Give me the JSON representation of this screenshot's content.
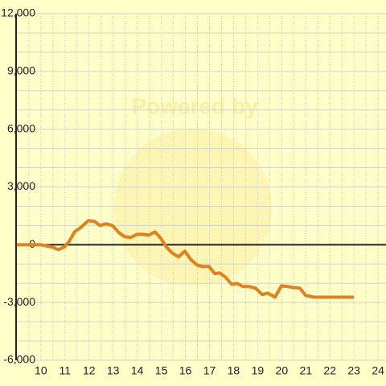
{
  "chart_data": {
    "type": "line",
    "watermark": "Powered by",
    "x": [
      9.0,
      10.0,
      10.47,
      10.73,
      10.97,
      11.17,
      11.4,
      11.64,
      11.97,
      12.24,
      12.44,
      12.7,
      12.97,
      13.24,
      13.47,
      13.74,
      13.98,
      14.24,
      14.48,
      14.74,
      14.98,
      15.21,
      15.45,
      15.71,
      15.98,
      16.21,
      16.48,
      16.72,
      16.98,
      17.22,
      17.42,
      17.65,
      17.92,
      18.15,
      18.39,
      18.65,
      18.92,
      19.19,
      19.42,
      19.72,
      19.99,
      20.26,
      20.49,
      20.76,
      20.99,
      21.33,
      22.0,
      23.0
    ],
    "series": [
      {
        "color": "#e0801e",
        "values": [
          0,
          0,
          -125,
          -250,
          -125,
          170,
          670,
          880,
          1250,
          1210,
          1000,
          1090,
          1000,
          630,
          420,
          380,
          540,
          540,
          500,
          670,
          330,
          -125,
          -420,
          -630,
          -330,
          -750,
          -1050,
          -1130,
          -1130,
          -1500,
          -1460,
          -1670,
          -2050,
          -2010,
          -2170,
          -2170,
          -2260,
          -2590,
          -2510,
          -2720,
          -2130,
          -2170,
          -2220,
          -2260,
          -2630,
          -2720,
          -2720,
          -2720
        ]
      }
    ],
    "xlim": [
      8.97,
      24.33
    ],
    "ylim": [
      -6000,
      12000
    ],
    "xticks": [
      10,
      11,
      12,
      13,
      14,
      15,
      16,
      17,
      18,
      19,
      20,
      21,
      22,
      23,
      24
    ],
    "yticks": [
      {
        "value": -6000,
        "label": "-6,000"
      },
      {
        "value": -3000,
        "label": "-3,000"
      },
      0,
      {
        "value": 3000,
        "label": "3,000"
      },
      {
        "value": 6000,
        "label": "6,000"
      },
      {
        "value": 9000,
        "label": "9,000"
      },
      {
        "value": 12000,
        "label": "12,000"
      }
    ],
    "x_minor_gridlines": [
      9.5,
      10.5,
      11.5,
      12.5,
      13.5,
      14.5,
      15.5,
      16.5,
      17.5,
      18.5,
      19.5,
      20.5,
      21.5,
      22.5,
      23.5
    ],
    "y_minor_gridlines": [
      -5000,
      -4000,
      -2000,
      -1000,
      1000,
      2000,
      4000,
      5000,
      7000,
      8000,
      10000,
      11000
    ],
    "grid": true
  }
}
